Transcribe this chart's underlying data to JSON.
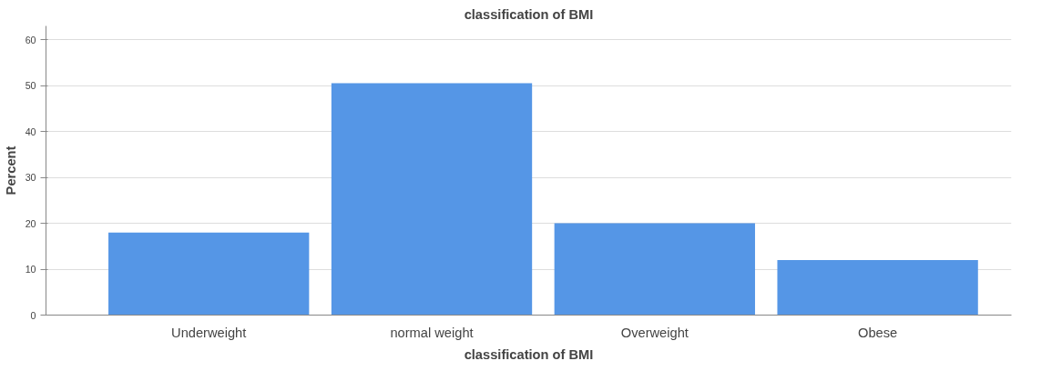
{
  "chart_data": {
    "type": "bar",
    "title": "classification of BMI",
    "xlabel": "classification of BMI",
    "ylabel": "Percent",
    "categories": [
      "Underweight",
      "normal weight",
      "Overweight",
      "Obese"
    ],
    "values": [
      18,
      50.5,
      20,
      12
    ],
    "color": "#5596e6",
    "ylim": [
      0,
      63
    ],
    "yticks": [
      0,
      10,
      20,
      30,
      40,
      50,
      60
    ],
    "grid": "y"
  }
}
